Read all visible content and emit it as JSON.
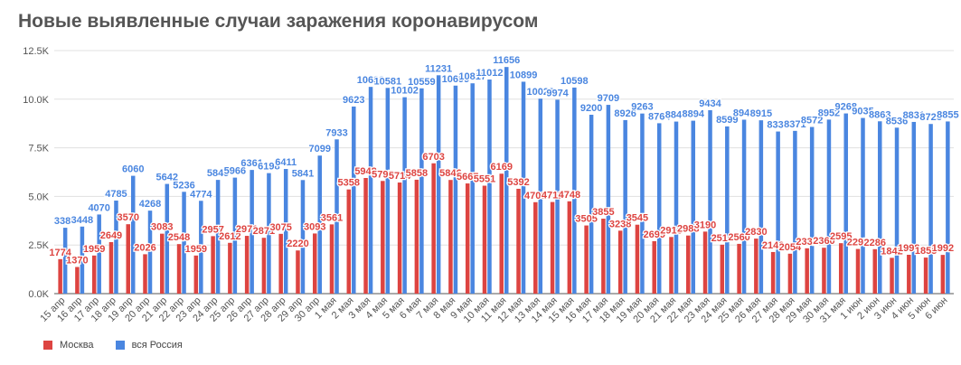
{
  "title": "Новые выявленные случаи заражения коронавирусом",
  "colors": {
    "moscow": "#dd4441",
    "russia": "#4a86e0",
    "grid": "#e0e0e0",
    "axis": "#555555"
  },
  "legend": {
    "moscow": "Москва",
    "russia": "вся Россия"
  },
  "chart_data": {
    "type": "bar",
    "title": "Новые выявленные случаи заражения коронавирусом",
    "xlabel": "",
    "ylabel": "",
    "ylim": [
      0,
      12500
    ],
    "yticks": [
      0,
      2500,
      5000,
      7500,
      10000,
      12500
    ],
    "ytick_labels": [
      "0.0K",
      "2.5K",
      "5.0K",
      "7.5K",
      "10.0K",
      "12.5K"
    ],
    "grid": true,
    "legend_position": "bottom-left",
    "categories": [
      "15 апр",
      "16 апр",
      "17 апр",
      "18 апр",
      "19 апр",
      "20 апр",
      "21 апр",
      "22 апр",
      "23 апр",
      "24 апр",
      "25 апр",
      "26 апр",
      "27 апр",
      "28 апр",
      "29 апр",
      "30 апр",
      "1 мая",
      "2 мая",
      "3 мая",
      "4 мая",
      "5 мая",
      "6 мая",
      "7 мая",
      "8 мая",
      "9 мая",
      "10 мая",
      "11 мая",
      "12 мая",
      "13 мая",
      "14 мая",
      "15 мая",
      "16 мая",
      "17 мая",
      "18 мая",
      "19 мая",
      "20 мая",
      "21 мая",
      "22 мая",
      "23 мая",
      "24 мая",
      "25 мая",
      "26 мая",
      "27 мая",
      "28 мая",
      "29 мая",
      "30 мая",
      "31 мая",
      "1 июн",
      "2 июн",
      "3 июн",
      "4 июн",
      "5 июн",
      "6 июн"
    ],
    "series": [
      {
        "name": "Москва",
        "values": [
          1774,
          1370,
          1959,
          2649,
          3570,
          2026,
          3083,
          2548,
          1959,
          2957,
          2612,
          2971,
          2871,
          3075,
          2220,
          3093,
          3561,
          5358,
          5948,
          5795,
          5714,
          5858,
          6703,
          5846,
          5667,
          5551,
          6169,
          5392,
          4703,
          4712,
          4748,
          3505,
          3855,
          3238,
          3545,
          2699,
          2913,
          2988,
          3190,
          2516,
          2560,
          2830,
          2140,
          2054,
          2332,
          2360,
          2595,
          2297,
          2286,
          1842,
          1998,
          1855,
          1992
        ]
      },
      {
        "name": "вся Россия",
        "values": [
          3388,
          3448,
          4070,
          4785,
          6060,
          4268,
          5642,
          5236,
          4774,
          5849,
          5966,
          6361,
          6198,
          6411,
          5841,
          7099,
          7933,
          9623,
          10633,
          10581,
          10102,
          10559,
          11231,
          10699,
          10817,
          11012,
          11656,
          10899,
          10028,
          9974,
          10598,
          9200,
          9709,
          8926,
          9263,
          8764,
          8849,
          8894,
          9434,
          8599,
          8946,
          8915,
          8338,
          8371,
          8572,
          8952,
          9268,
          9035,
          8863,
          8536,
          8831,
          8726,
          8855
        ]
      }
    ]
  }
}
